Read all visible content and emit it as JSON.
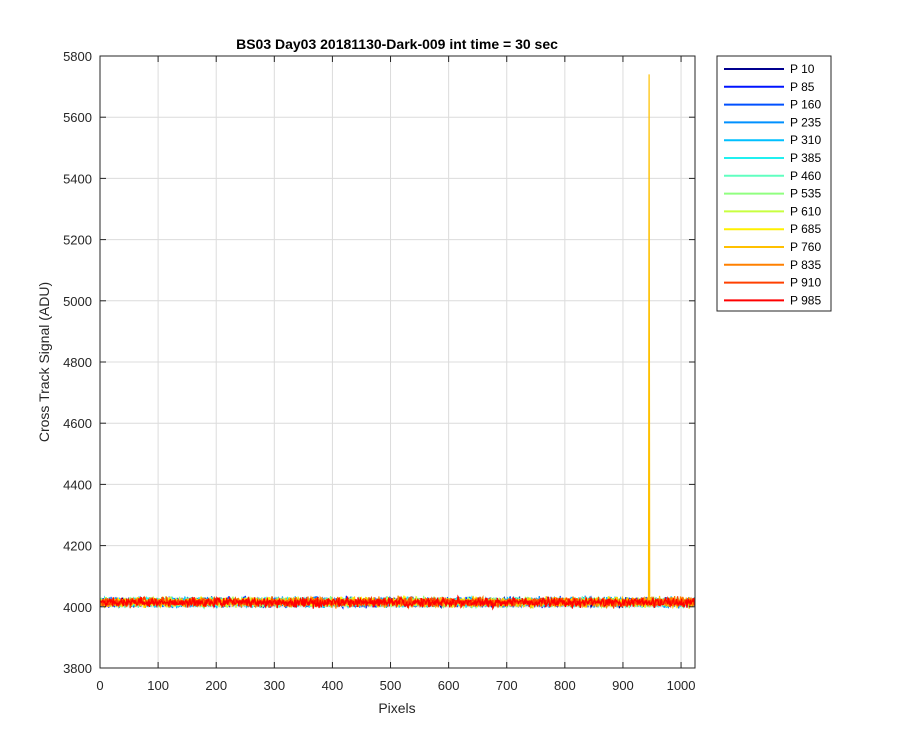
{
  "chart_data": {
    "type": "line",
    "title": "BS03 Day03 20181130-Dark-009 int time = 30 sec",
    "xlabel": "Pixels",
    "ylabel": "Cross Track Signal (ADU)",
    "xlim": [
      0,
      1024
    ],
    "ylim": [
      3800,
      5800
    ],
    "xticks": [
      0,
      100,
      200,
      300,
      400,
      500,
      600,
      700,
      800,
      900,
      1000
    ],
    "yticks": [
      3800,
      4000,
      4200,
      4400,
      4600,
      4800,
      5000,
      5200,
      5400,
      5600,
      5800
    ],
    "grid": true,
    "legend_position": "outside-top-right",
    "n_points": 1024,
    "baseline": 4015,
    "noise_amplitude": 15,
    "series": [
      {
        "name": "P 10",
        "color": "#00008F"
      },
      {
        "name": "P 85",
        "color": "#0014FF"
      },
      {
        "name": "P 160",
        "color": "#0050FF"
      },
      {
        "name": "P 235",
        "color": "#0090FF"
      },
      {
        "name": "P 310",
        "color": "#00C0FF"
      },
      {
        "name": "P 385",
        "color": "#20F0F0"
      },
      {
        "name": "P 460",
        "color": "#60FFC0"
      },
      {
        "name": "P 535",
        "color": "#90FF80"
      },
      {
        "name": "P 610",
        "color": "#C8FF40"
      },
      {
        "name": "P 685",
        "color": "#FFF000"
      },
      {
        "name": "P 760",
        "color": "#FFC000"
      },
      {
        "name": "P 835",
        "color": "#FF8000"
      },
      {
        "name": "P 910",
        "color": "#FF4000"
      },
      {
        "name": "P 985",
        "color": "#FF0000"
      }
    ],
    "spike": {
      "series": "P 760",
      "x": 945,
      "y": 5740
    }
  }
}
